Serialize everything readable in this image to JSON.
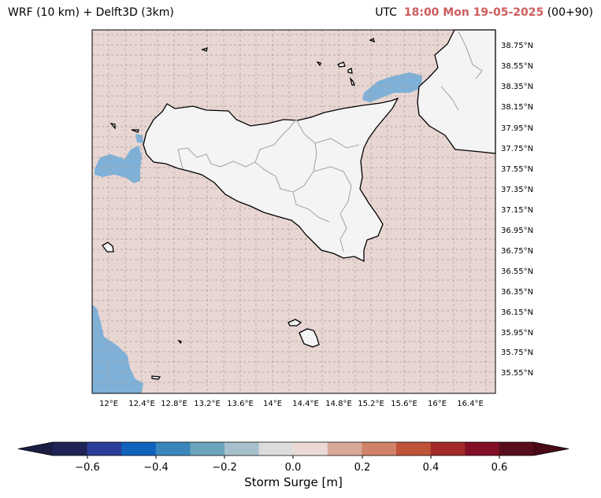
{
  "header": {
    "model_label": "WRF (10 km) + Delft3D (3km)",
    "utc_label": "UTC",
    "time_label": "18:00 Mon 19-05-2025",
    "lead_label": "(00+90)"
  },
  "map": {
    "lat_labels": [
      "38.75°N",
      "38.55°N",
      "38.35°N",
      "38.15°N",
      "37.95°N",
      "37.75°N",
      "37.55°N",
      "37.35°N",
      "37.15°N",
      "36.95°N",
      "36.75°N",
      "36.55°N",
      "36.35°N",
      "36.15°N",
      "35.95°N",
      "35.75°N",
      "35.55°N"
    ],
    "lon_labels": [
      "12°E",
      "12.4°E",
      "12.8°E",
      "13.2°E",
      "13.6°E",
      "14°E",
      "14.4°E",
      "14.8°E",
      "15.2°E",
      "15.6°E",
      "16°E",
      "16.4°E"
    ],
    "sea_color": "#e8d6d3",
    "land_color": "#f4f4f4",
    "negative_surge_color": "#7fb1d8"
  },
  "colorbar": {
    "title": "Storm Surge [m]",
    "ticks": [
      "−0.6",
      "−0.4",
      "−0.2",
      "0.0",
      "0.2",
      "0.4",
      "0.6"
    ],
    "colors": [
      "#1f2456",
      "#2a3e9a",
      "#0f63bd",
      "#3a86bb",
      "#6aa5bd",
      "#a8c0cc",
      "#dcdcdc",
      "#ebd9d5",
      "#d8a898",
      "#d08268",
      "#bf5439",
      "#a42a29",
      "#830f26",
      "#580d1d"
    ],
    "extend_min_color": "#1b1e42",
    "extend_max_color": "#480a16"
  }
}
